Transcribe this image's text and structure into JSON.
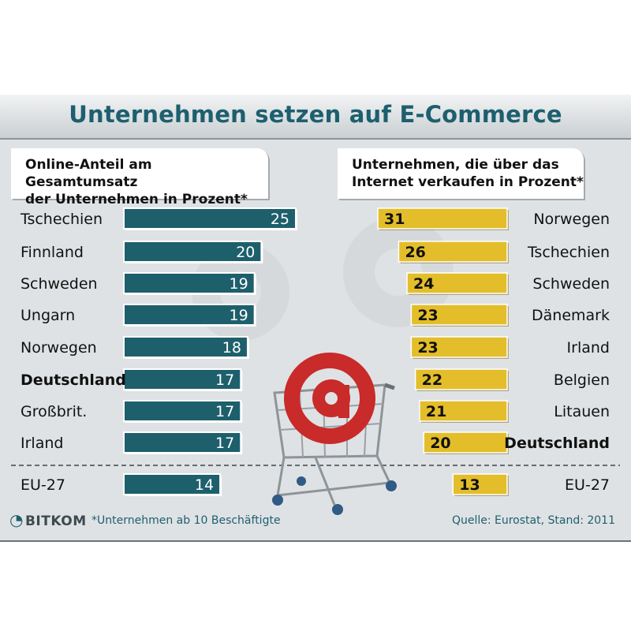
{
  "title": "Unternehmen setzen auf E-Commerce",
  "footnote": "*Unternehmen ab 10 Beschäftigte",
  "source": "Quelle: Eurostat, Stand: 2011",
  "logo": "BITKOM",
  "colors": {
    "left_bar": "#1e5f6c",
    "right_bar": "#e4be2a",
    "title": "#1d5f6e"
  },
  "chart_data": [
    {
      "type": "bar",
      "title": "Online-Anteil am Gesamtumsatz der Unternehmen in Prozent*",
      "title_lines": [
        "Online-Anteil am Gesamtumsatz",
        "der Unternehmen in Prozent*"
      ],
      "categories": [
        "Tschechien",
        "Finnland",
        "Schweden",
        "Ungarn",
        "Norwegen",
        "Deutschland",
        "Großbrit.",
        "Irland",
        "EU-27"
      ],
      "values": [
        25,
        20,
        19,
        19,
        18,
        17,
        17,
        17,
        14
      ],
      "highlight": "Deutschland",
      "orientation": "horizontal"
    },
    {
      "type": "bar",
      "title": "Unternehmen, die über das Internet verkaufen in Prozent*",
      "title_lines": [
        "Unternehmen, die über das",
        "Internet verkaufen in Prozent*"
      ],
      "categories": [
        "Norwegen",
        "Tschechien",
        "Schweden",
        "Dänemark",
        "Irland",
        "Belgien",
        "Litauen",
        "Deutschland",
        "EU-27"
      ],
      "values": [
        31,
        26,
        24,
        23,
        23,
        22,
        21,
        20,
        13
      ],
      "highlight": "Deutschland",
      "orientation": "horizontal"
    }
  ]
}
